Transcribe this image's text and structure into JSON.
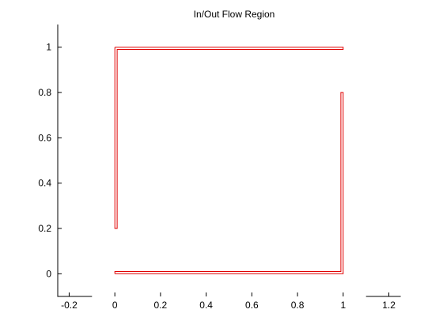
{
  "chart_data": {
    "type": "line",
    "title": "In/Out Flow Region",
    "xlabel": "",
    "ylabel": "",
    "xlim": [
      -0.25,
      1.25
    ],
    "ylim": [
      -0.1,
      1.1
    ],
    "grid": false,
    "box": false,
    "line_color": "#e00000",
    "x_ticks": [
      {
        "value": -0.2,
        "label": "-0.2"
      },
      {
        "value": 0,
        "label": "0"
      },
      {
        "value": 0.2,
        "label": "0.2"
      },
      {
        "value": 0.4,
        "label": "0.4"
      },
      {
        "value": 0.6,
        "label": "0.6"
      },
      {
        "value": 0.8,
        "label": "0.8"
      },
      {
        "value": 1,
        "label": "1"
      },
      {
        "value": 1.2,
        "label": "1.2"
      }
    ],
    "y_ticks": [
      {
        "value": 0,
        "label": "0"
      },
      {
        "value": 0.2,
        "label": "0.2"
      },
      {
        "value": 0.4,
        "label": "0.4"
      },
      {
        "value": 0.6,
        "label": "0.6"
      },
      {
        "value": 0.8,
        "label": "0.8"
      },
      {
        "value": 1,
        "label": "1"
      }
    ],
    "series": [
      {
        "x": [
          0,
          1,
          1,
          0.99,
          0.99,
          0.01,
          0.01,
          0,
          0
        ],
        "y": [
          1,
          1,
          0.99,
          0.99,
          0.99,
          0.99,
          0.2,
          0.2,
          1
        ]
      },
      {
        "x": [
          0,
          1,
          1,
          0.99,
          0.99,
          0,
          0
        ],
        "y": [
          0,
          0,
          0.8,
          0.8,
          0.01,
          0.01,
          0
        ]
      }
    ]
  }
}
